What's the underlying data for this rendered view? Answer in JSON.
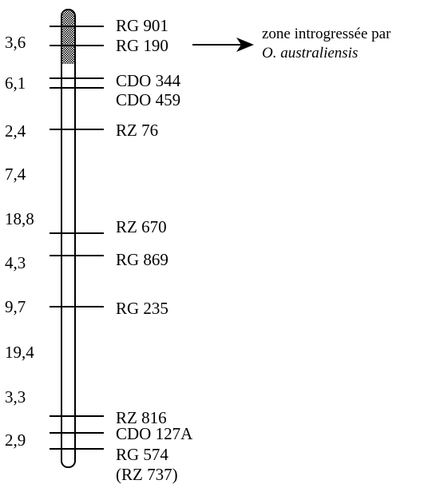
{
  "distances": [
    "3,6",
    "6,1",
    "2,4",
    "7,4",
    "18,8",
    "4,3",
    "9,7",
    "19,4",
    "3,3",
    "2,9"
  ],
  "markers": [
    "RG 901",
    "RG 190",
    "CDO 344",
    "CDO 459",
    "RZ 76",
    "RZ 670",
    "RG 869",
    "RG 235",
    "RZ 816",
    "CDO 127A",
    "RG 574",
    "(RZ 737)"
  ],
  "annotation": {
    "line1": "zone introgressée par",
    "line2": "O. australiensis"
  },
  "colors": {
    "ink": "#000000",
    "introgression_fill": "#9a9a9a",
    "background": "#ffffff"
  }
}
